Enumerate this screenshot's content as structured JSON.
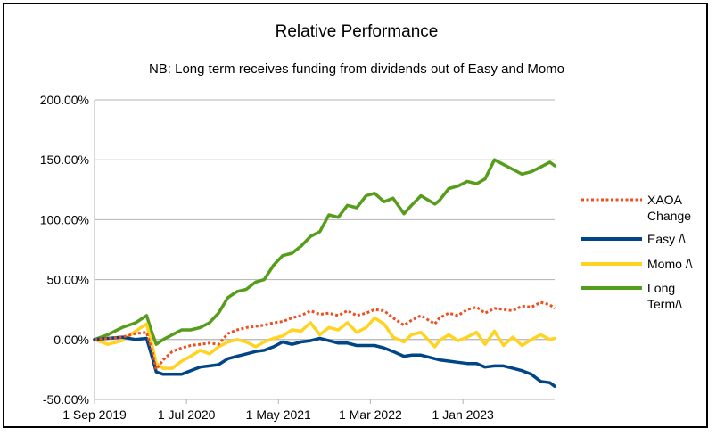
{
  "chart_data": {
    "type": "line",
    "title": "Relative Performance",
    "subtitle": "NB: Long term receives funding from dividends out of Easy and Momo",
    "xlabel": "",
    "ylabel": "",
    "ylim": [
      -0.5,
      2.0
    ],
    "y_ticks": [
      -0.5,
      0.0,
      0.5,
      1.0,
      1.5,
      2.0
    ],
    "y_tick_labels": [
      "-50.00%",
      "0.00%",
      "50.00%",
      "100.00%",
      "150.00%",
      "200.00%"
    ],
    "xlim": [
      "2019-09-01",
      "2023-10-31"
    ],
    "x_ticks": [
      "2019-09-01",
      "2020-07-01",
      "2021-05-01",
      "2022-03-01",
      "2023-01-01"
    ],
    "x_tick_labels": [
      "1 Sep 2019",
      "1 Jul 2020",
      "1 May 2021",
      "1 Mar 2022",
      "1 Jan 2023"
    ],
    "grid": "horizontal",
    "legend_position": "right",
    "series": [
      {
        "name": "XAOA Change",
        "legend_lines": [
          "XAOA",
          "Change"
        ],
        "color": "#ee4f1f",
        "style": "dotted",
        "points": [
          [
            "2019-09-01",
            0.0
          ],
          [
            "2019-10-15",
            0.01
          ],
          [
            "2019-12-01",
            0.02
          ],
          [
            "2020-01-15",
            0.05
          ],
          [
            "2020-02-20",
            0.06
          ],
          [
            "2020-03-10",
            -0.1
          ],
          [
            "2020-03-23",
            -0.25
          ],
          [
            "2020-04-15",
            -0.17
          ],
          [
            "2020-05-15",
            -0.1
          ],
          [
            "2020-06-15",
            -0.07
          ],
          [
            "2020-07-15",
            -0.05
          ],
          [
            "2020-08-15",
            -0.04
          ],
          [
            "2020-09-15",
            -0.03
          ],
          [
            "2020-10-15",
            -0.04
          ],
          [
            "2020-11-15",
            0.05
          ],
          [
            "2020-12-15",
            0.08
          ],
          [
            "2021-01-15",
            0.1
          ],
          [
            "2021-02-15",
            0.11
          ],
          [
            "2021-03-15",
            0.12
          ],
          [
            "2021-04-15",
            0.14
          ],
          [
            "2021-05-15",
            0.15
          ],
          [
            "2021-06-15",
            0.18
          ],
          [
            "2021-07-15",
            0.2
          ],
          [
            "2021-08-15",
            0.24
          ],
          [
            "2021-09-15",
            0.21
          ],
          [
            "2021-10-15",
            0.22
          ],
          [
            "2021-11-15",
            0.2
          ],
          [
            "2021-12-15",
            0.24
          ],
          [
            "2022-01-15",
            0.2
          ],
          [
            "2022-02-15",
            0.22
          ],
          [
            "2022-03-15",
            0.25
          ],
          [
            "2022-04-15",
            0.24
          ],
          [
            "2022-05-15",
            0.18
          ],
          [
            "2022-06-20",
            0.12
          ],
          [
            "2022-07-15",
            0.16
          ],
          [
            "2022-08-15",
            0.2
          ],
          [
            "2022-09-30",
            0.13
          ],
          [
            "2022-10-15",
            0.18
          ],
          [
            "2022-11-15",
            0.22
          ],
          [
            "2022-12-15",
            0.2
          ],
          [
            "2023-01-15",
            0.25
          ],
          [
            "2023-02-15",
            0.27
          ],
          [
            "2023-03-15",
            0.22
          ],
          [
            "2023-04-15",
            0.26
          ],
          [
            "2023-05-15",
            0.25
          ],
          [
            "2023-06-15",
            0.24
          ],
          [
            "2023-07-15",
            0.28
          ],
          [
            "2023-08-15",
            0.27
          ],
          [
            "2023-09-15",
            0.31
          ],
          [
            "2023-10-15",
            0.29
          ],
          [
            "2023-10-31",
            0.26
          ]
        ]
      },
      {
        "name": "Easy /\\",
        "legend_lines": [
          "Easy /\\"
        ],
        "color": "#004586",
        "style": "solid",
        "points": [
          [
            "2019-09-01",
            0.0
          ],
          [
            "2019-10-15",
            0.01
          ],
          [
            "2019-12-01",
            0.02
          ],
          [
            "2020-01-15",
            0.0
          ],
          [
            "2020-02-20",
            0.01
          ],
          [
            "2020-03-10",
            -0.15
          ],
          [
            "2020-03-23",
            -0.27
          ],
          [
            "2020-04-15",
            -0.29
          ],
          [
            "2020-05-15",
            -0.29
          ],
          [
            "2020-06-15",
            -0.29
          ],
          [
            "2020-07-15",
            -0.26
          ],
          [
            "2020-08-15",
            -0.23
          ],
          [
            "2020-09-15",
            -0.22
          ],
          [
            "2020-10-15",
            -0.21
          ],
          [
            "2020-11-15",
            -0.16
          ],
          [
            "2020-12-15",
            -0.14
          ],
          [
            "2021-01-15",
            -0.12
          ],
          [
            "2021-02-15",
            -0.1
          ],
          [
            "2021-03-15",
            -0.09
          ],
          [
            "2021-04-15",
            -0.06
          ],
          [
            "2021-05-15",
            -0.02
          ],
          [
            "2021-06-15",
            -0.04
          ],
          [
            "2021-07-15",
            -0.02
          ],
          [
            "2021-08-15",
            -0.01
          ],
          [
            "2021-09-15",
            0.01
          ],
          [
            "2021-10-15",
            -0.01
          ],
          [
            "2021-11-15",
            -0.03
          ],
          [
            "2021-12-15",
            -0.03
          ],
          [
            "2022-01-15",
            -0.05
          ],
          [
            "2022-02-15",
            -0.05
          ],
          [
            "2022-03-15",
            -0.05
          ],
          [
            "2022-04-15",
            -0.07
          ],
          [
            "2022-05-15",
            -0.1
          ],
          [
            "2022-06-20",
            -0.14
          ],
          [
            "2022-07-15",
            -0.13
          ],
          [
            "2022-08-15",
            -0.13
          ],
          [
            "2022-09-30",
            -0.16
          ],
          [
            "2022-10-15",
            -0.17
          ],
          [
            "2022-11-15",
            -0.18
          ],
          [
            "2022-12-15",
            -0.19
          ],
          [
            "2023-01-15",
            -0.2
          ],
          [
            "2023-02-15",
            -0.2
          ],
          [
            "2023-03-15",
            -0.23
          ],
          [
            "2023-04-15",
            -0.22
          ],
          [
            "2023-05-15",
            -0.22
          ],
          [
            "2023-06-15",
            -0.24
          ],
          [
            "2023-07-15",
            -0.26
          ],
          [
            "2023-08-15",
            -0.29
          ],
          [
            "2023-09-15",
            -0.35
          ],
          [
            "2023-10-15",
            -0.36
          ],
          [
            "2023-10-31",
            -0.39
          ]
        ]
      },
      {
        "name": "Momo /\\",
        "legend_lines": [
          "Momo /\\"
        ],
        "color": "#ffd320",
        "style": "solid",
        "points": [
          [
            "2019-09-01",
            0.0
          ],
          [
            "2019-10-15",
            -0.04
          ],
          [
            "2019-12-01",
            -0.01
          ],
          [
            "2020-01-15",
            0.07
          ],
          [
            "2020-02-20",
            0.13
          ],
          [
            "2020-03-10",
            -0.05
          ],
          [
            "2020-03-23",
            -0.2
          ],
          [
            "2020-04-15",
            -0.24
          ],
          [
            "2020-05-15",
            -0.24
          ],
          [
            "2020-06-15",
            -0.18
          ],
          [
            "2020-07-15",
            -0.14
          ],
          [
            "2020-08-15",
            -0.09
          ],
          [
            "2020-09-15",
            -0.12
          ],
          [
            "2020-10-15",
            -0.06
          ],
          [
            "2020-11-15",
            -0.02
          ],
          [
            "2020-12-15",
            0.0
          ],
          [
            "2021-01-15",
            -0.02
          ],
          [
            "2021-02-15",
            -0.06
          ],
          [
            "2021-03-15",
            -0.02
          ],
          [
            "2021-04-15",
            0.01
          ],
          [
            "2021-05-15",
            0.03
          ],
          [
            "2021-06-15",
            0.08
          ],
          [
            "2021-07-15",
            0.07
          ],
          [
            "2021-08-15",
            0.14
          ],
          [
            "2021-09-15",
            0.04
          ],
          [
            "2021-10-15",
            0.1
          ],
          [
            "2021-11-15",
            0.08
          ],
          [
            "2021-12-15",
            0.14
          ],
          [
            "2022-01-15",
            0.06
          ],
          [
            "2022-02-15",
            0.1
          ],
          [
            "2022-03-15",
            0.18
          ],
          [
            "2022-04-15",
            0.13
          ],
          [
            "2022-05-15",
            0.02
          ],
          [
            "2022-06-20",
            -0.02
          ],
          [
            "2022-07-15",
            0.04
          ],
          [
            "2022-08-15",
            0.06
          ],
          [
            "2022-09-30",
            -0.06
          ],
          [
            "2022-10-15",
            -0.01
          ],
          [
            "2022-11-15",
            0.04
          ],
          [
            "2022-12-15",
            -0.01
          ],
          [
            "2023-01-15",
            0.02
          ],
          [
            "2023-02-15",
            0.06
          ],
          [
            "2023-03-15",
            -0.04
          ],
          [
            "2023-04-15",
            0.07
          ],
          [
            "2023-05-15",
            -0.05
          ],
          [
            "2023-06-15",
            0.02
          ],
          [
            "2023-07-15",
            -0.05
          ],
          [
            "2023-08-15",
            0.0
          ],
          [
            "2023-09-15",
            0.04
          ],
          [
            "2023-10-15",
            0.0
          ],
          [
            "2023-10-31",
            0.01
          ]
        ]
      },
      {
        "name": "Long Term/\\",
        "legend_lines": [
          "Long",
          "Term/\\"
        ],
        "color": "#579d1c",
        "style": "solid",
        "points": [
          [
            "2019-09-01",
            0.0
          ],
          [
            "2019-10-15",
            0.04
          ],
          [
            "2019-12-01",
            0.1
          ],
          [
            "2020-01-15",
            0.14
          ],
          [
            "2020-02-20",
            0.2
          ],
          [
            "2020-03-10",
            0.05
          ],
          [
            "2020-03-23",
            -0.04
          ],
          [
            "2020-04-15",
            0.0
          ],
          [
            "2020-05-15",
            0.04
          ],
          [
            "2020-06-15",
            0.08
          ],
          [
            "2020-07-15",
            0.08
          ],
          [
            "2020-08-15",
            0.1
          ],
          [
            "2020-09-15",
            0.14
          ],
          [
            "2020-10-15",
            0.22
          ],
          [
            "2020-11-15",
            0.35
          ],
          [
            "2020-12-15",
            0.4
          ],
          [
            "2021-01-15",
            0.42
          ],
          [
            "2021-02-15",
            0.48
          ],
          [
            "2021-03-15",
            0.5
          ],
          [
            "2021-04-15",
            0.62
          ],
          [
            "2021-05-15",
            0.7
          ],
          [
            "2021-06-15",
            0.72
          ],
          [
            "2021-07-15",
            0.78
          ],
          [
            "2021-08-15",
            0.86
          ],
          [
            "2021-09-15",
            0.9
          ],
          [
            "2021-10-15",
            1.04
          ],
          [
            "2021-11-15",
            1.02
          ],
          [
            "2021-12-15",
            1.12
          ],
          [
            "2022-01-15",
            1.1
          ],
          [
            "2022-02-15",
            1.2
          ],
          [
            "2022-03-15",
            1.22
          ],
          [
            "2022-04-15",
            1.15
          ],
          [
            "2022-05-15",
            1.18
          ],
          [
            "2022-06-20",
            1.05
          ],
          [
            "2022-07-15",
            1.12
          ],
          [
            "2022-08-15",
            1.2
          ],
          [
            "2022-09-30",
            1.13
          ],
          [
            "2022-10-15",
            1.16
          ],
          [
            "2022-11-15",
            1.26
          ],
          [
            "2022-12-15",
            1.28
          ],
          [
            "2023-01-15",
            1.32
          ],
          [
            "2023-02-15",
            1.3
          ],
          [
            "2023-03-15",
            1.34
          ],
          [
            "2023-04-15",
            1.5
          ],
          [
            "2023-05-15",
            1.46
          ],
          [
            "2023-06-15",
            1.42
          ],
          [
            "2023-07-15",
            1.38
          ],
          [
            "2023-08-15",
            1.4
          ],
          [
            "2023-09-15",
            1.44
          ],
          [
            "2023-10-15",
            1.48
          ],
          [
            "2023-10-31",
            1.45
          ]
        ]
      }
    ]
  }
}
